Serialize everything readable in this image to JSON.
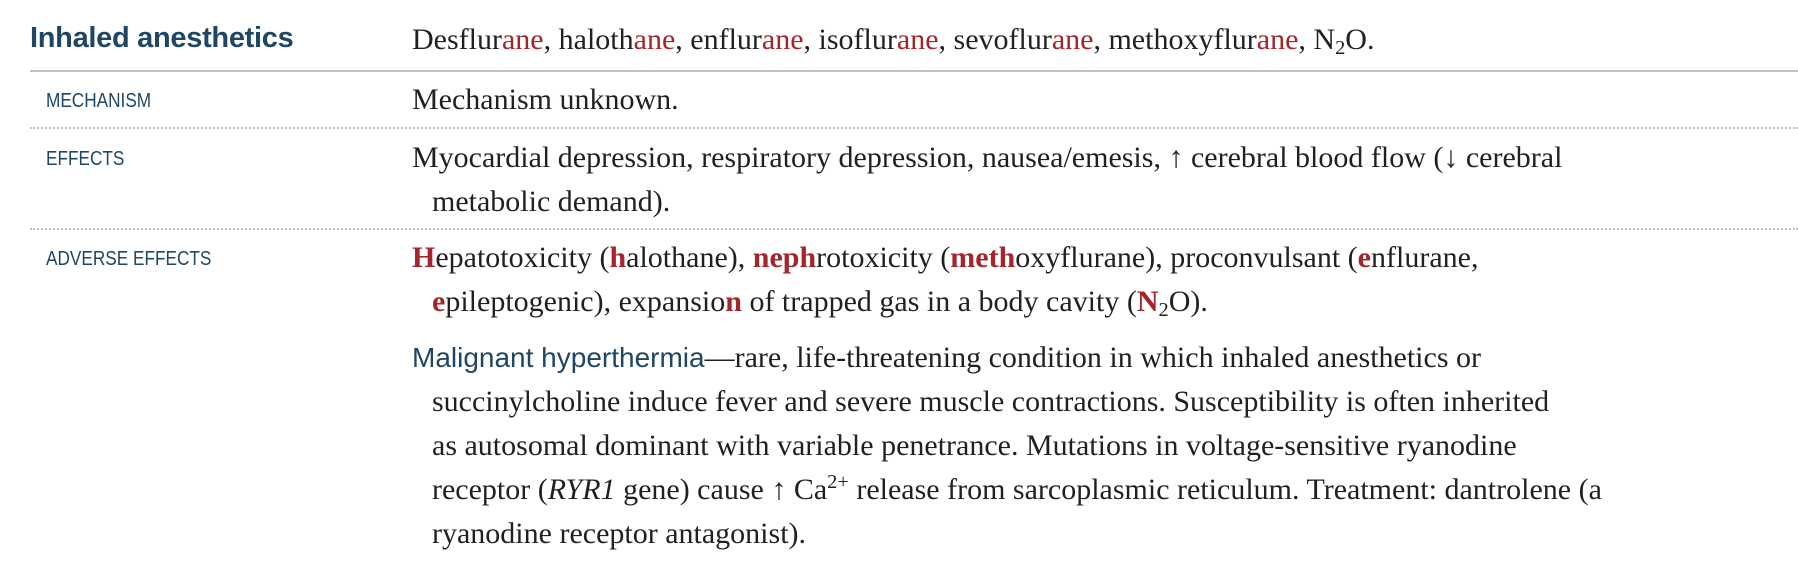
{
  "header": {
    "title": "Inhaled anesthetics",
    "drugs": [
      {
        "stem": "Desflur",
        "suffix": "ane"
      },
      {
        "stem": "halot h",
        "suffix": "ane"
      },
      {
        "stem": "enflur",
        "suffix": "ane"
      },
      {
        "stem": "isoflur",
        "suffix": "ane"
      },
      {
        "stem": "sevoflur",
        "suffix": "ane"
      },
      {
        "stem": "methoxyflur",
        "suffix": "ane"
      }
    ],
    "last_drug": {
      "main": "N",
      "sub": "2",
      "tail": "O."
    }
  },
  "rows": {
    "mechanism": {
      "label": "MECHANISM",
      "text": "Mechanism unknown."
    },
    "effects": {
      "label": "EFFECTS",
      "line1_a": "Myocardial depression, respiratory depression, nausea/emesis, ",
      "arrow_up": "↑",
      "line1_b": " cerebral blood flow (",
      "arrow_down": "↓",
      "line1_c": " cerebral",
      "line2": "metabolic demand)."
    },
    "adverse": {
      "label": "ADVERSE EFFECTS",
      "p1": {
        "h": "H",
        "t1": "epatotoxicity (",
        "h2": "h",
        "t2": "alothane), ",
        "neph": "neph",
        "t3": "rotoxicity (",
        "meth": "meth",
        "t4": "oxyflurane), proconvulsant (",
        "e": "e",
        "t5": "nflurane,",
        "e2": "e",
        "t6": "pileptogenic), expansio",
        "n": "n",
        "t7": " of trapped gas in a body cavity (",
        "N": "N",
        "sub": "2",
        "t8": "O)."
      },
      "p2": {
        "term": "Malignant hyperthermia",
        "l1": "—rare, life-threatening condition in which inhaled anesthetics or",
        "l2": "succinylcholine induce fever and severe muscle contractions. Susceptibility is often inherited",
        "l3": "as autosomal dominant with variable penetrance. Mutations in voltage-sensitive ryanodine",
        "l4a": "receptor (",
        "gene": "RYR1",
        "l4b": " gene) cause ",
        "arrow": "↑",
        "l4c": " Ca",
        "sup": "2+",
        "l4d": " release from sarcoplasmic reticulum. Treatment: dantrolene (a",
        "l5": "ryanodine receptor antagonist)."
      }
    }
  }
}
